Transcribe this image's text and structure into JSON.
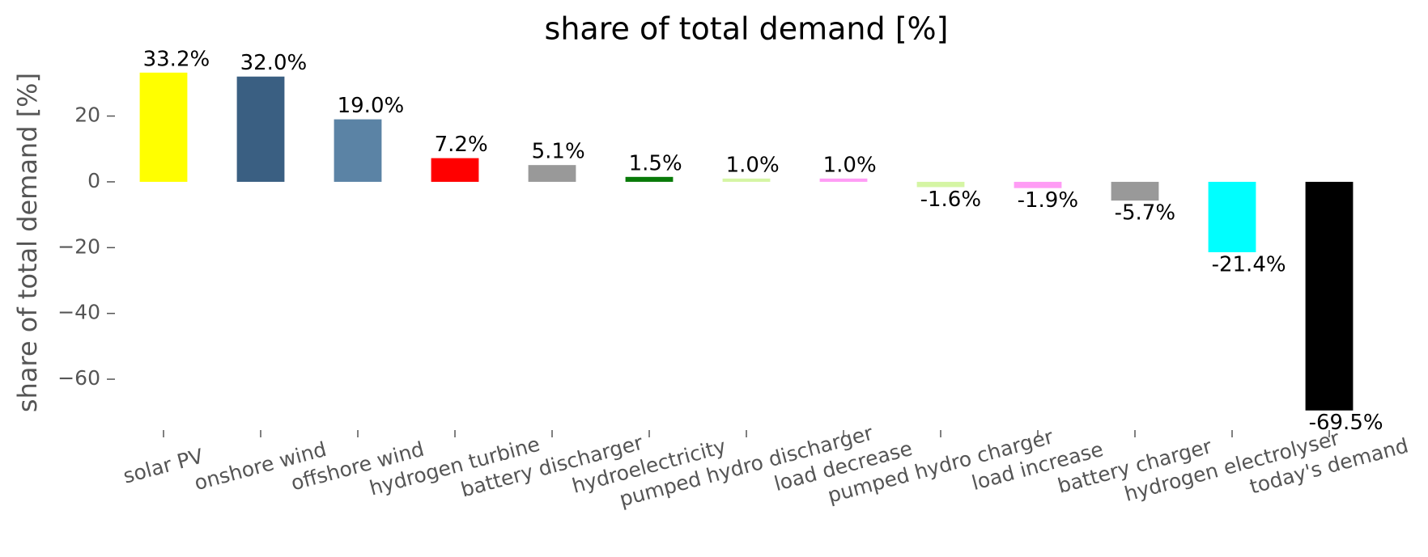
{
  "chart_data": {
    "type": "bar",
    "title": "share of total demand [%]",
    "y_label": "share of total demand [%]",
    "categories": [
      "solar PV",
      "onshore wind",
      "offshore wind",
      "hydrogen turbine",
      "battery discharger",
      "hydroelectricity",
      "pumped hydro discharger",
      "load decrease",
      "pumped hydro charger",
      "load increase",
      "battery charger",
      "hydrogen electrolyser",
      "today's demand"
    ],
    "values": [
      33.2,
      32.0,
      19.0,
      7.2,
      5.1,
      1.5,
      1.0,
      1.0,
      -1.6,
      -1.9,
      -5.7,
      -21.4,
      -69.5
    ],
    "value_labels": [
      "33.2%",
      "32.0%",
      "19.0%",
      "7.2%",
      "5.1%",
      "1.5%",
      "1.0%",
      "1.0%",
      "-1.6%",
      "-1.9%",
      "-5.7%",
      "-21.4%",
      "-69.5%"
    ],
    "colors": [
      "#ffff00",
      "#3a5f82",
      "#5b83a5",
      "#ff0000",
      "#999999",
      "#087a08",
      "#d5f5a4",
      "#ff9cf5",
      "#d5f5a4",
      "#ff9cf5",
      "#999999",
      "#00ffff",
      "#000000"
    ],
    "ylim": [
      -73.5,
      36.6
    ],
    "yticks": [
      {
        "value": -60,
        "label": "−60"
      },
      {
        "value": -40,
        "label": "−40"
      },
      {
        "value": -20,
        "label": "−20"
      },
      0,
      20
    ],
    "grid": false
  }
}
